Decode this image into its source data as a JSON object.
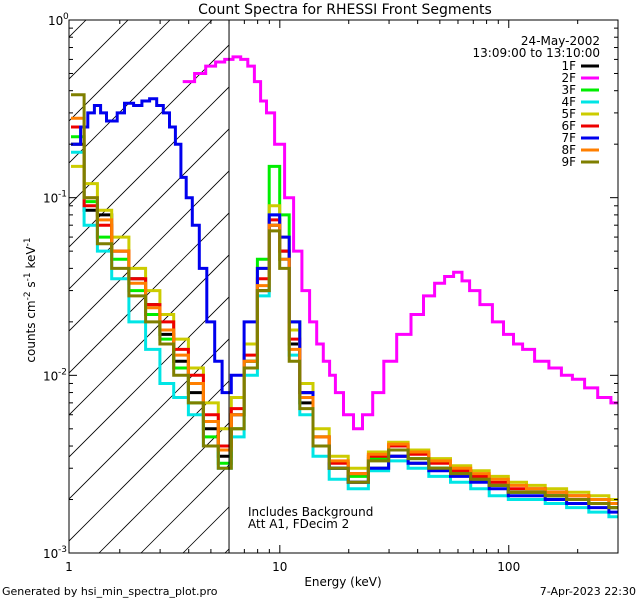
{
  "chart_data": {
    "type": "line",
    "title": "Count Spectra for RHESSI Front Segments",
    "xlabel": "Energy (keV)",
    "ylabel": "counts cm^-2 s^-1 keV^-1",
    "xscale": "log",
    "yscale": "log",
    "xlim": [
      1.2,
      300
    ],
    "ylim": [
      0.001,
      1
    ],
    "x_tick_labels": [
      {
        "value": 1,
        "label": "1"
      },
      {
        "value": 10,
        "label": "10"
      },
      {
        "value": 100,
        "label": "100"
      }
    ],
    "y_tick_labels": [
      {
        "value": 0.001,
        "label": "10",
        "exp": "-3"
      },
      {
        "value": 0.01,
        "label": "10",
        "exp": "-2"
      },
      {
        "value": 0.1,
        "label": "10",
        "exp": "-1"
      },
      {
        "value": 1,
        "label": "10",
        "exp": "0"
      }
    ],
    "date": "24-May-2002",
    "time_range": "13:09:00 to 13:10:00",
    "hatched_region_upper_energy_keV": 6,
    "annotations": [
      "Includes Background",
      "Att A1, FDecim 2"
    ],
    "footer_left": "Generated by hsi_min_spectra_plot.pro",
    "footer_right": "7-Apr-2023 22:30",
    "series": [
      {
        "name": "1F",
        "color": "#000000",
        "x": [
          1.3,
          1.5,
          1.7,
          2.0,
          2.4,
          2.8,
          3.2,
          3.7,
          4.3,
          5.0,
          5.8,
          6.5,
          7.5,
          8.5,
          9.5,
          10.5,
          11.5,
          13,
          15,
          18,
          22,
          27,
          33,
          40,
          50,
          62,
          75,
          90,
          110,
          130,
          160,
          200,
          250,
          300
        ],
        "y": [
          0.2,
          0.085,
          0.08,
          0.05,
          0.035,
          0.025,
          0.017,
          0.012,
          0.008,
          0.005,
          0.0035,
          0.006,
          0.012,
          0.03,
          0.07,
          0.05,
          0.015,
          0.007,
          0.004,
          0.003,
          0.0025,
          0.003,
          0.0035,
          0.0032,
          0.003,
          0.0028,
          0.0026,
          0.0024,
          0.0022,
          0.0022,
          0.0021,
          0.002,
          0.0019,
          0.0018
        ]
      },
      {
        "name": "2F",
        "color": "#ff00ff",
        "x": [
          4.0,
          4.5,
          5.0,
          5.5,
          6.0,
          6.5,
          7.0,
          7.5,
          8.0,
          8.5,
          9.0,
          10,
          11,
          12,
          13,
          14,
          15,
          16,
          17,
          18,
          20,
          22,
          24,
          27,
          30,
          35,
          40,
          45,
          50,
          55,
          60,
          65,
          70,
          80,
          90,
          100,
          110,
          120,
          140,
          160,
          180,
          200,
          230,
          260,
          300
        ],
        "y": [
          0.45,
          0.5,
          0.55,
          0.58,
          0.6,
          0.62,
          0.6,
          0.55,
          0.45,
          0.35,
          0.3,
          0.2,
          0.1,
          0.05,
          0.03,
          0.02,
          0.015,
          0.012,
          0.01,
          0.008,
          0.006,
          0.005,
          0.006,
          0.008,
          0.012,
          0.017,
          0.022,
          0.028,
          0.033,
          0.036,
          0.038,
          0.034,
          0.03,
          0.025,
          0.02,
          0.017,
          0.015,
          0.014,
          0.012,
          0.011,
          0.01,
          0.0095,
          0.0085,
          0.0075,
          0.007
        ]
      },
      {
        "name": "3F",
        "color": "#00ee00",
        "x": [
          1.3,
          1.5,
          1.7,
          2.0,
          2.4,
          2.8,
          3.2,
          3.7,
          4.3,
          5.0,
          5.8,
          6.5,
          7.5,
          8.5,
          9.5,
          10.5,
          11.5,
          13,
          15,
          18,
          22,
          27,
          33,
          40,
          50,
          62,
          75,
          90,
          110,
          130,
          160,
          200,
          250,
          300
        ],
        "y": [
          0.22,
          0.095,
          0.06,
          0.045,
          0.03,
          0.022,
          0.016,
          0.011,
          0.007,
          0.0045,
          0.0032,
          0.005,
          0.012,
          0.045,
          0.15,
          0.08,
          0.02,
          0.008,
          0.0045,
          0.003,
          0.0027,
          0.0034,
          0.0038,
          0.0034,
          0.003,
          0.0028,
          0.0026,
          0.0024,
          0.0022,
          0.0022,
          0.0021,
          0.002,
          0.0019,
          0.0018
        ]
      },
      {
        "name": "4F",
        "color": "#00e5e5",
        "x": [
          1.3,
          1.5,
          1.7,
          2.0,
          2.4,
          2.8,
          3.2,
          3.7,
          4.3,
          5.0,
          5.8,
          6.5,
          7.5,
          8.5,
          9.5,
          10.5,
          11.5,
          13,
          15,
          18,
          22,
          27,
          33,
          40,
          50,
          62,
          75,
          90,
          110,
          130,
          160,
          200,
          250,
          300
        ],
        "y": [
          0.18,
          0.07,
          0.05,
          0.035,
          0.02,
          0.014,
          0.009,
          0.0075,
          0.006,
          0.004,
          0.003,
          0.0045,
          0.01,
          0.028,
          0.08,
          0.045,
          0.013,
          0.006,
          0.0035,
          0.0026,
          0.0023,
          0.0029,
          0.0033,
          0.003,
          0.0027,
          0.0025,
          0.0023,
          0.0021,
          0.002,
          0.002,
          0.0019,
          0.0018,
          0.0017,
          0.0016
        ]
      },
      {
        "name": "5F",
        "color": "#cccc00",
        "x": [
          1.3,
          1.5,
          1.7,
          2.0,
          2.4,
          2.8,
          3.2,
          3.7,
          4.3,
          5.0,
          5.8,
          6.5,
          7.5,
          8.5,
          9.5,
          10.5,
          11.5,
          13,
          15,
          18,
          22,
          27,
          33,
          40,
          50,
          62,
          75,
          90,
          110,
          130,
          160,
          200,
          250,
          300
        ],
        "y": [
          0.15,
          0.12,
          0.085,
          0.06,
          0.04,
          0.03,
          0.022,
          0.016,
          0.011,
          0.007,
          0.005,
          0.0075,
          0.015,
          0.04,
          0.09,
          0.06,
          0.018,
          0.009,
          0.005,
          0.0035,
          0.003,
          0.0037,
          0.0042,
          0.0038,
          0.0034,
          0.0031,
          0.0029,
          0.0027,
          0.0025,
          0.0024,
          0.0023,
          0.0022,
          0.0021,
          0.002
        ]
      },
      {
        "name": "6F",
        "color": "#ee0000",
        "x": [
          1.3,
          1.5,
          1.7,
          2.0,
          2.4,
          2.8,
          3.2,
          3.7,
          4.3,
          5.0,
          5.8,
          6.5,
          7.5,
          8.5,
          9.5,
          10.5,
          11.5,
          13,
          15,
          18,
          22,
          27,
          33,
          40,
          50,
          62,
          75,
          90,
          110,
          130,
          160,
          200,
          250,
          300
        ],
        "y": [
          0.25,
          0.09,
          0.07,
          0.05,
          0.035,
          0.025,
          0.02,
          0.014,
          0.01,
          0.006,
          0.004,
          0.0065,
          0.013,
          0.035,
          0.075,
          0.05,
          0.016,
          0.008,
          0.0045,
          0.0032,
          0.0028,
          0.0035,
          0.004,
          0.0036,
          0.0032,
          0.0029,
          0.0027,
          0.0025,
          0.0023,
          0.0023,
          0.0022,
          0.0021,
          0.002,
          0.0019
        ]
      },
      {
        "name": "7F",
        "color": "#0000ee",
        "x": [
          1.3,
          1.4,
          1.5,
          1.6,
          1.7,
          1.8,
          1.9,
          2.0,
          2.2,
          2.4,
          2.6,
          2.8,
          3.0,
          3.2,
          3.4,
          3.6,
          3.8,
          4.0,
          4.3,
          4.6,
          5.0,
          5.4,
          5.8,
          6.5,
          7.5,
          8.5,
          9.5,
          10.5,
          11.5,
          13,
          15,
          18,
          22,
          27,
          33,
          40,
          50,
          62,
          75,
          90,
          110,
          130,
          160,
          200,
          250,
          300
        ],
        "y": [
          0.2,
          0.25,
          0.3,
          0.33,
          0.3,
          0.27,
          0.27,
          0.3,
          0.34,
          0.33,
          0.35,
          0.36,
          0.33,
          0.3,
          0.25,
          0.2,
          0.13,
          0.1,
          0.07,
          0.04,
          0.02,
          0.012,
          0.008,
          0.01,
          0.02,
          0.04,
          0.08,
          0.06,
          0.02,
          0.008,
          0.004,
          0.003,
          0.0025,
          0.003,
          0.0035,
          0.0032,
          0.0029,
          0.0027,
          0.0025,
          0.0023,
          0.0021,
          0.0021,
          0.002,
          0.0019,
          0.0018,
          0.0017
        ]
      },
      {
        "name": "8F",
        "color": "#ff7f00",
        "x": [
          1.3,
          1.5,
          1.7,
          2.0,
          2.4,
          2.8,
          3.2,
          3.7,
          4.3,
          5.0,
          5.8,
          6.5,
          7.5,
          8.5,
          9.5,
          10.5,
          11.5,
          13,
          15,
          18,
          22,
          27,
          33,
          40,
          50,
          62,
          75,
          90,
          110,
          130,
          160,
          200,
          250,
          300
        ],
        "y": [
          0.28,
          0.1,
          0.075,
          0.05,
          0.033,
          0.024,
          0.018,
          0.013,
          0.009,
          0.0055,
          0.0038,
          0.006,
          0.012,
          0.032,
          0.07,
          0.045,
          0.014,
          0.0075,
          0.0045,
          0.0033,
          0.0028,
          0.0036,
          0.0041,
          0.0037,
          0.0033,
          0.003,
          0.0028,
          0.0026,
          0.0024,
          0.0023,
          0.0022,
          0.0021,
          0.002,
          0.0019
        ]
      },
      {
        "name": "9F",
        "color": "#7f7f00",
        "x": [
          1.3,
          1.5,
          1.7,
          2.0,
          2.4,
          2.8,
          3.2,
          3.7,
          4.3,
          5.0,
          5.8,
          6.5,
          7.5,
          8.5,
          9.5,
          10.5,
          11.5,
          13,
          15,
          18,
          22,
          27,
          33,
          40,
          50,
          62,
          75,
          90,
          110,
          130,
          160,
          200,
          250,
          300
        ],
        "y": [
          0.38,
          0.1,
          0.055,
          0.04,
          0.028,
          0.02,
          0.015,
          0.01,
          0.007,
          0.004,
          0.003,
          0.005,
          0.011,
          0.03,
          0.065,
          0.04,
          0.012,
          0.0065,
          0.004,
          0.003,
          0.0025,
          0.0033,
          0.0038,
          0.0034,
          0.003,
          0.0028,
          0.0026,
          0.0024,
          0.0022,
          0.0022,
          0.0021,
          0.002,
          0.0019,
          0.0018
        ]
      }
    ]
  }
}
